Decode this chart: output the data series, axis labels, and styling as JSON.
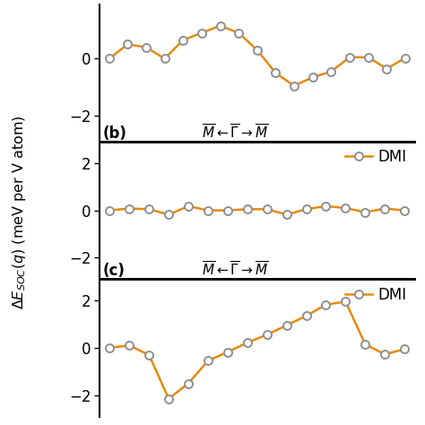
{
  "panel_a": {
    "x": [
      0,
      1,
      2,
      3,
      4,
      5,
      6,
      7,
      8,
      9,
      10,
      11,
      12,
      13,
      14,
      15,
      16
    ],
    "y": [
      0.0,
      0.5,
      0.4,
      0.0,
      0.65,
      0.9,
      1.15,
      0.9,
      0.3,
      -0.5,
      -0.95,
      -0.65,
      -0.45,
      0.05,
      0.05,
      -0.35,
      0.02
    ]
  },
  "panel_b": {
    "x": [
      0,
      1,
      2,
      3,
      4,
      5,
      6,
      7,
      8,
      9,
      10,
      11,
      12,
      13,
      14,
      15
    ],
    "y": [
      0.0,
      0.08,
      0.05,
      -0.18,
      0.18,
      0.0,
      0.0,
      0.05,
      0.05,
      -0.18,
      0.05,
      0.18,
      0.1,
      -0.08,
      0.08,
      0.0
    ],
    "label": "(b)",
    "path_label": "$\\overline{M}\\leftarrow\\overline{\\Gamma}\\rightarrow\\overline{M}$"
  },
  "panel_c": {
    "x": [
      0,
      1,
      2,
      3,
      4,
      5,
      6,
      7,
      8,
      9,
      10,
      11,
      12,
      13,
      14,
      15
    ],
    "y": [
      0.0,
      0.1,
      -0.3,
      -2.15,
      -1.5,
      -0.55,
      -0.18,
      0.22,
      0.55,
      0.95,
      1.35,
      1.82,
      1.95,
      0.15,
      -0.28,
      -0.05
    ],
    "label": "(c)",
    "path_label": "$\\overline{M}\\leftarrow\\overline{\\Gamma}\\rightarrow\\overline{M}$"
  },
  "line_color": "#E8890C",
  "marker_facecolor": "#ffffff",
  "marker_edgecolor": "#909090",
  "ylabel": "$\\Delta E_{SOC}(q)$ (meV per V atom)",
  "bg_color": "#ffffff",
  "dmi_legend_label": "DMI"
}
